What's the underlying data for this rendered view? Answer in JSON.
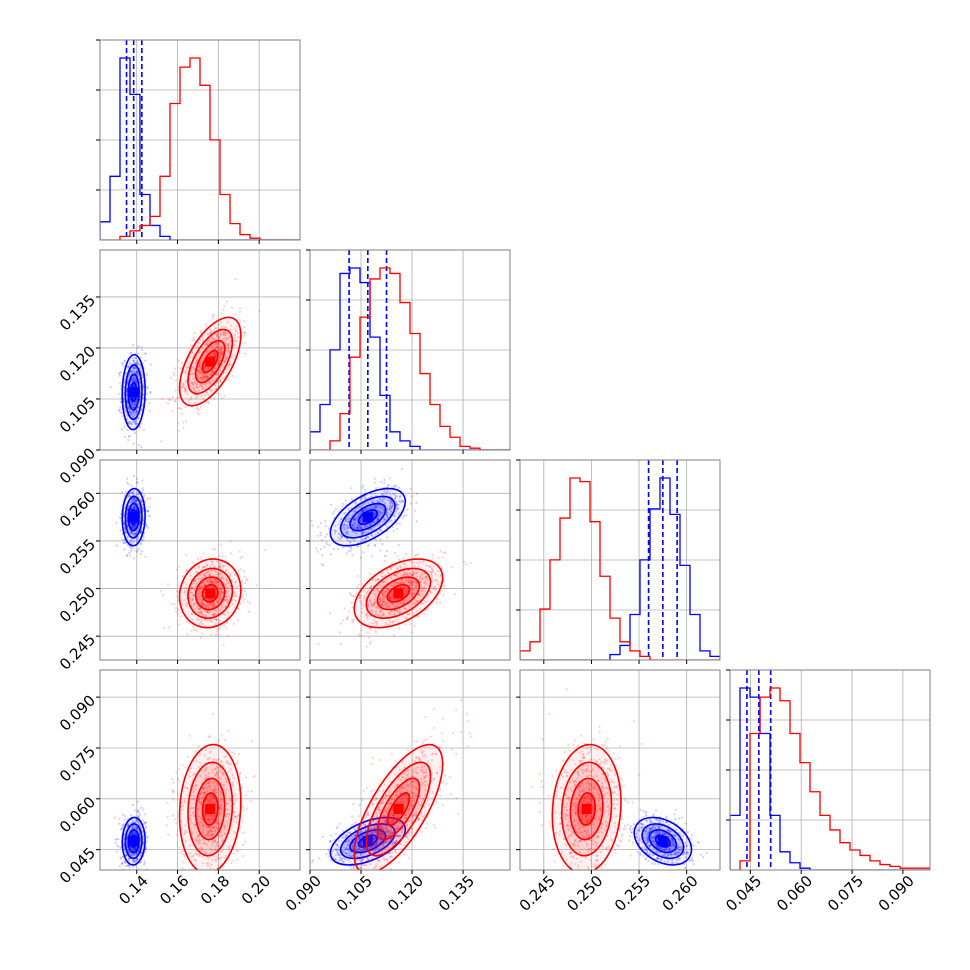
{
  "chart_data": {
    "type": "corner",
    "colors": {
      "blue": "#0000ff",
      "red": "#ff0000",
      "grid": "#b0b0b0",
      "frame": "#808080"
    },
    "params": [
      {
        "id": "p0",
        "range": [
          0.122,
          0.22
        ],
        "ticks": [
          0.14,
          0.16,
          0.18,
          0.2
        ],
        "tick_labels": [
          "0.14",
          "0.16",
          "0.18",
          "0.20"
        ]
      },
      {
        "id": "p1",
        "range": [
          0.09,
          0.1488
        ],
        "ticks": [
          0.09,
          0.105,
          0.12,
          0.135
        ],
        "tick_labels": [
          "0.090",
          "0.105",
          "0.120",
          "0.135"
        ]
      },
      {
        "id": "p2",
        "range": [
          0.2425,
          0.2635
        ],
        "ticks": [
          0.245,
          0.25,
          0.255,
          0.26
        ],
        "tick_labels": [
          "0.245",
          "0.250",
          "0.255",
          "0.260"
        ]
      },
      {
        "id": "p3",
        "range": [
          0.039,
          0.098
        ],
        "ticks": [
          0.045,
          0.06,
          0.075,
          0.09
        ],
        "tick_labels": [
          "0.045",
          "0.060",
          "0.075",
          "0.090"
        ]
      }
    ],
    "series": [
      {
        "color": "blue",
        "mean": [
          0.1385,
          0.107,
          0.2575,
          0.0475
        ],
        "sd": [
          0.0028,
          0.0055,
          0.0015,
          0.0035
        ],
        "corr": {
          "0-1": 0.05,
          "0-2": 0.05,
          "0-3": 0.05,
          "1-2": 0.55,
          "1-3": 0.5,
          "2-3": -0.35
        },
        "quantiles": [
          [
            0.135,
            0.1385,
            0.1425
          ],
          [
            0.1015,
            0.107,
            0.1125
          ],
          [
            0.256,
            0.2575,
            0.259
          ],
          [
            0.044,
            0.0475,
            0.051
          ]
        ],
        "hist": [
          [
            0.1,
            0.35,
            1.0,
            0.8,
            0.25,
            0.08,
            0.02,
            0,
            0,
            0,
            0,
            0,
            0,
            0,
            0,
            0,
            0,
            0,
            0,
            0
          ],
          [
            0.1,
            0.25,
            0.55,
            0.97,
            1.0,
            0.92,
            0.62,
            0.3,
            0.1,
            0.05,
            0.02,
            0,
            0,
            0,
            0,
            0,
            0,
            0,
            0,
            0
          ],
          [
            0,
            0,
            0,
            0,
            0,
            0,
            0,
            0,
            0,
            0.03,
            0.08,
            0.25,
            0.55,
            0.83,
            1.0,
            0.8,
            0.52,
            0.25,
            0.05,
            0.02
          ],
          [
            0.3,
            1.0,
            0.95,
            0.75,
            0.3,
            0.1,
            0.04,
            0.01,
            0,
            0,
            0,
            0,
            0,
            0,
            0,
            0,
            0,
            0,
            0,
            0
          ]
        ]
      },
      {
        "color": "red",
        "mean": [
          0.176,
          0.116,
          0.2495,
          0.057
        ],
        "sd": [
          0.0075,
          0.0065,
          0.0018,
          0.0095
        ],
        "corr": {
          "0-1": 0.6,
          "0-2": 0.1,
          "0-3": 0.1,
          "1-2": 0.45,
          "1-3": 0.7,
          "2-3": 0.1
        },
        "hist": [
          [
            0,
            0,
            0.02,
            0.05,
            0.08,
            0.13,
            0.35,
            0.75,
            0.95,
            1.0,
            0.85,
            0.55,
            0.25,
            0.09,
            0.03,
            0.01,
            0,
            0,
            0,
            0
          ],
          [
            0,
            0,
            0.05,
            0.2,
            0.51,
            0.73,
            0.94,
            1.0,
            0.97,
            0.81,
            0.64,
            0.42,
            0.25,
            0.13,
            0.07,
            0.02,
            0.01,
            0,
            0,
            0
          ],
          [
            0.05,
            0.1,
            0.28,
            0.55,
            0.78,
            1.0,
            0.98,
            0.76,
            0.46,
            0.23,
            0.1,
            0.05,
            0.02,
            0,
            0,
            0,
            0,
            0,
            0,
            0
          ],
          [
            0,
            0.05,
            0.75,
            0.95,
            1.0,
            0.93,
            0.75,
            0.59,
            0.43,
            0.3,
            0.22,
            0.15,
            0.11,
            0.08,
            0.05,
            0.03,
            0.02,
            0.01,
            0.01,
            0.01
          ]
        ]
      }
    ]
  }
}
